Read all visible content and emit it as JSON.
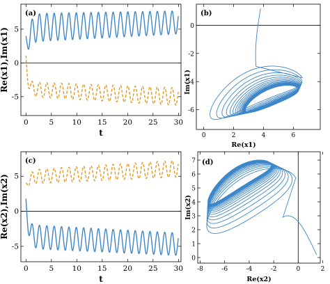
{
  "chart_data": [
    {
      "id": "a",
      "type": "line",
      "panel_label": "(a)",
      "xlabel": "t",
      "ylabel": "Re(x1),Im(x1)",
      "xlim": [
        -1,
        30.5
      ],
      "ylim": [
        -7.8,
        8.7
      ],
      "xticks": [
        0,
        5,
        10,
        15,
        20,
        25,
        30
      ],
      "yticks": [
        -5,
        0,
        5
      ],
      "series": [
        {
          "kind": "solid",
          "color": "#3d86c8",
          "start": 4.0,
          "dip": -0.3,
          "center_start": 5.2,
          "center_end": 6.0,
          "amp_start": 2.1,
          "amp_end": 1.7,
          "period": 1.45
        },
        {
          "kind": "dashed",
          "color": "#e09a1f",
          "start": 1.1,
          "dip": -1.9,
          "center_start": -3.9,
          "center_end": -5.0,
          "amp_start": 1.1,
          "amp_end": 1.3,
          "period": 1.45
        }
      ]
    },
    {
      "id": "b",
      "type": "line",
      "panel_label": "(b)",
      "xlabel": "Re(x1)",
      "ylabel": "Im(x1)",
      "xlim": [
        -0.5,
        7.8
      ],
      "ylim": [
        -7.4,
        1.5
      ],
      "xticks": [
        0,
        2,
        4,
        6
      ],
      "yticks": [
        -6,
        -4,
        -2,
        0
      ],
      "series": [
        {
          "kind": "phase-portrait",
          "color": "#3d86c8"
        }
      ]
    },
    {
      "id": "c",
      "type": "line",
      "panel_label": "(c)",
      "xlabel": "t",
      "ylabel": "Re(x2),Im(x2)",
      "xlim": [
        -1,
        30.5
      ],
      "ylim": [
        -7.2,
        8.5
      ],
      "xticks": [
        0,
        5,
        10,
        15,
        20,
        25,
        30
      ],
      "yticks": [
        -5,
        0,
        5
      ],
      "series": [
        {
          "kind": "solid",
          "color": "#3d86c8",
          "start": 1.8,
          "dip": -0.4,
          "center_start": -3.6,
          "center_end": -4.7,
          "amp_start": 1.7,
          "amp_end": 1.6,
          "period": 1.45
        },
        {
          "kind": "dashed",
          "color": "#e09a1f",
          "start": 4.0,
          "dip": 3.0,
          "center_start": 4.9,
          "center_end": 6.1,
          "amp_start": 1.0,
          "amp_end": 1.2,
          "period": 1.45
        }
      ]
    },
    {
      "id": "d",
      "type": "line",
      "panel_label": "(d)",
      "xlabel": "Re(x2)",
      "ylabel": "Im(x2)",
      "xlim": [
        -8.2,
        1.8
      ],
      "ylim": [
        -0.4,
        7.6
      ],
      "xticks": [
        -8,
        -6,
        -4,
        -2,
        0,
        2
      ],
      "yticks": [
        0,
        1,
        2,
        3,
        4,
        5,
        6,
        7
      ],
      "series": [
        {
          "kind": "phase-portrait",
          "color": "#3d86c8"
        }
      ]
    }
  ]
}
